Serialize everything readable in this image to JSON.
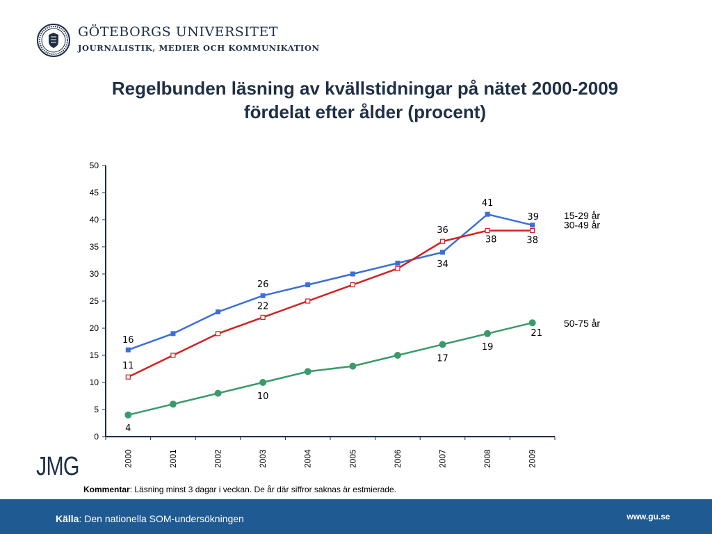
{
  "header": {
    "university": "GÖTEBORGS UNIVERSITET",
    "department": "JOURNALISTIK, MEDIER OCH KOMMUNIKATION"
  },
  "title_line1": "Regelbunden läsning av kvällstidningar på nätet 2000-2009",
  "title_line2": "fördelat efter ålder (procent)",
  "logo_text": "JMG",
  "comment": {
    "label": "Kommentar",
    "text": ": Läsning minst 3 dagar i veckan. De år där siffror saknas är estmierade."
  },
  "footer": {
    "source_label": "Källa",
    "source_text": ": Den nationella SOM-undersökningen",
    "url": "www.gu.se"
  },
  "colors": {
    "series_15_29": "#3a6fd8",
    "series_30_49": "#d42020",
    "series_50_75": "#3a9a6a",
    "footer": "#1f5a93",
    "title": "#1f2f45"
  },
  "chart_data": {
    "type": "line",
    "categories": [
      "2000",
      "2001",
      "2002",
      "2003",
      "2004",
      "2005",
      "2006",
      "2007",
      "2008",
      "2009"
    ],
    "ylim": [
      0,
      50
    ],
    "yticks": [
      0,
      5,
      10,
      15,
      20,
      25,
      30,
      35,
      40,
      45,
      50
    ],
    "grid": false,
    "series": [
      {
        "name": "15-29 år",
        "values": [
          16,
          19,
          23,
          26,
          28,
          30,
          32,
          34,
          41,
          39
        ],
        "labeled": [
          {
            "index": 0,
            "text": "16"
          },
          {
            "index": 3,
            "text": "26"
          },
          {
            "index": 7,
            "text": "34"
          },
          {
            "index": 8,
            "text": "41"
          },
          {
            "index": 9,
            "text": "39"
          }
        ]
      },
      {
        "name": "30-49 år",
        "values": [
          11,
          15,
          19,
          22,
          25,
          28,
          31,
          36,
          38,
          38
        ],
        "labeled": [
          {
            "index": 0,
            "text": "11"
          },
          {
            "index": 3,
            "text": "22"
          },
          {
            "index": 7,
            "text": "36"
          },
          {
            "index": 8,
            "text": "38"
          },
          {
            "index": 9,
            "text": "38"
          }
        ]
      },
      {
        "name": "50-75 år",
        "values": [
          4,
          6,
          8,
          10,
          12,
          13,
          15,
          17,
          19,
          21
        ],
        "labeled": [
          {
            "index": 0,
            "text": "4"
          },
          {
            "index": 3,
            "text": "10"
          },
          {
            "index": 7,
            "text": "17"
          },
          {
            "index": 8,
            "text": "19"
          },
          {
            "index": 9,
            "text": "21"
          }
        ]
      }
    ]
  }
}
